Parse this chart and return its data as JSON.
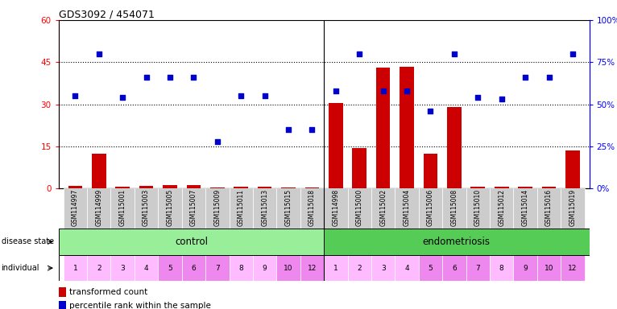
{
  "title": "GDS3092 / 454071",
  "samples": [
    "GSM114997",
    "GSM114999",
    "GSM115001",
    "GSM115003",
    "GSM115005",
    "GSM115007",
    "GSM115009",
    "GSM115011",
    "GSM115013",
    "GSM115015",
    "GSM115018",
    "GSM114998",
    "GSM115000",
    "GSM115002",
    "GSM115004",
    "GSM115006",
    "GSM115008",
    "GSM115010",
    "GSM115012",
    "GSM115014",
    "GSM115016",
    "GSM115019"
  ],
  "transformed_count": [
    1.0,
    12.5,
    0.5,
    1.0,
    1.2,
    1.2,
    0.3,
    0.5,
    0.5,
    0.3,
    0.3,
    30.5,
    14.5,
    43.0,
    43.5,
    12.5,
    29.0,
    0.5,
    0.5,
    0.5,
    0.5,
    13.5
  ],
  "percentile_rank": [
    55,
    80,
    54,
    66,
    66,
    66,
    28,
    55,
    55,
    35,
    35,
    58,
    80,
    58,
    58,
    46,
    80,
    54,
    53,
    66,
    66,
    80
  ],
  "individual": [
    "1",
    "2",
    "3",
    "4",
    "5",
    "6",
    "7",
    "8",
    "9",
    "10",
    "12",
    "1",
    "2",
    "3",
    "4",
    "5",
    "6",
    "7",
    "8",
    "9",
    "10",
    "12"
  ],
  "bar_color": "#cc0000",
  "dot_color": "#0000cc",
  "ylim_left": [
    0,
    60
  ],
  "ylim_right": [
    0,
    100
  ],
  "yticks_left": [
    0,
    15,
    30,
    45,
    60
  ],
  "yticks_right": [
    0,
    25,
    50,
    75,
    100
  ],
  "ytick_labels_right": [
    "0%",
    "25%",
    "50%",
    "75%",
    "100%"
  ],
  "control_color": "#99ee99",
  "endometriosis_color": "#55cc55",
  "ind_colors": [
    "#ffbbff",
    "#ffbbff",
    "#ffbbff",
    "#ffbbff",
    "#ee88ee",
    "#ee88ee",
    "#ee88ee",
    "#ffbbff",
    "#ffbbff",
    "#ee88ee",
    "#ee88ee",
    "#ffbbff",
    "#ffbbff",
    "#ffbbff",
    "#ffbbff",
    "#ee88ee",
    "#ee88ee",
    "#ee88ee",
    "#ffbbff",
    "#ee88ee",
    "#ee88ee",
    "#ee88ee"
  ],
  "bg_color": "#cccccc"
}
